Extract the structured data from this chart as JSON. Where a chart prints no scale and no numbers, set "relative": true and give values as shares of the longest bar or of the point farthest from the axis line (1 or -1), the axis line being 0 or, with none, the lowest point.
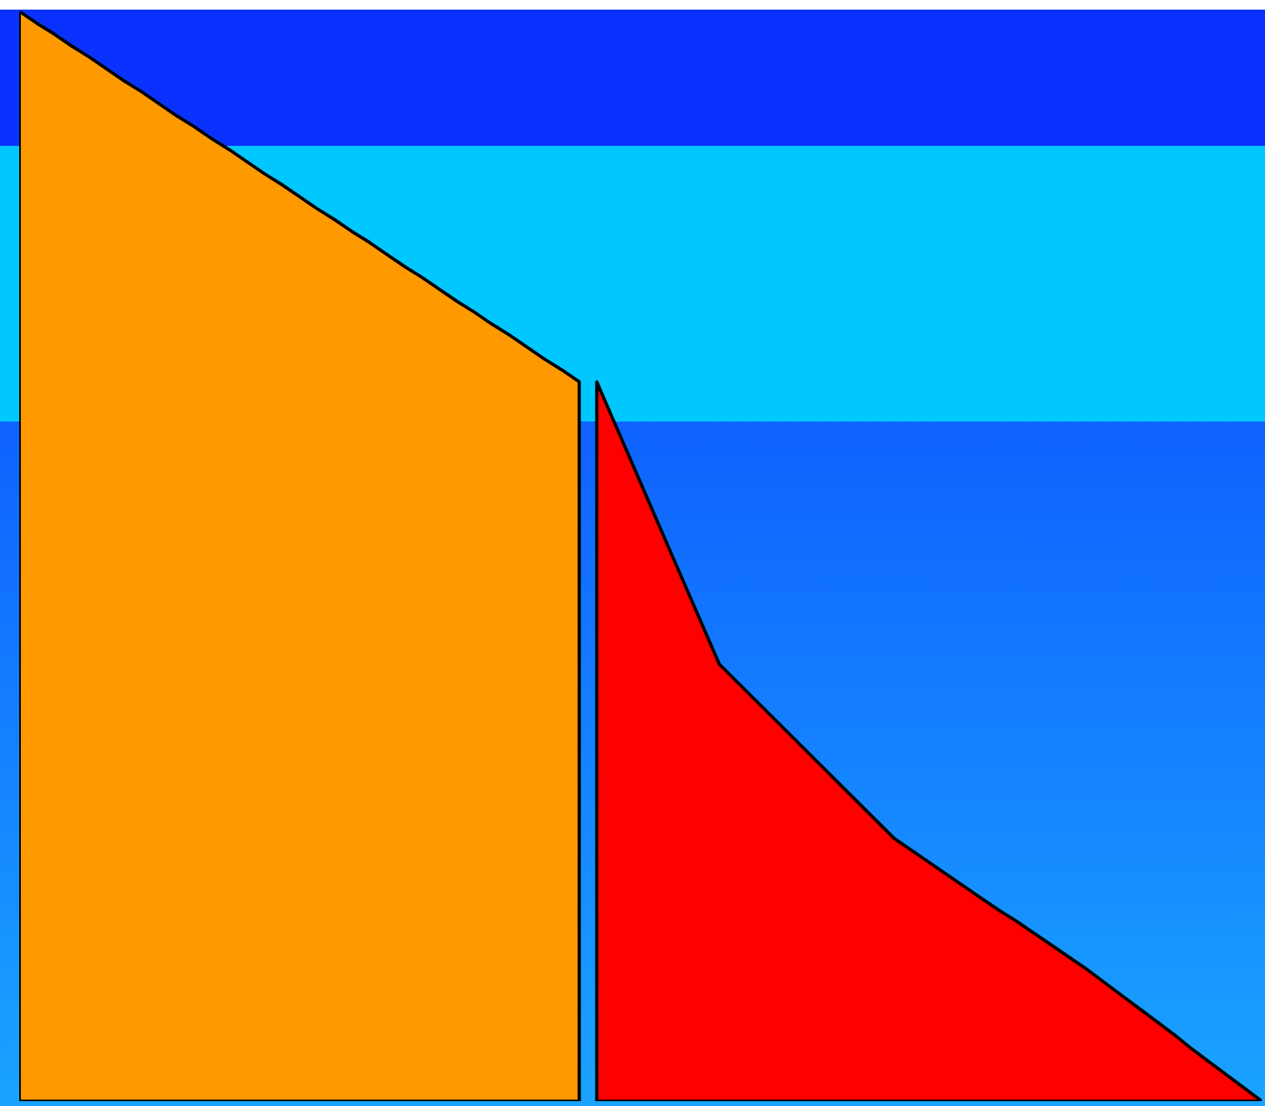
{
  "chart_data": {
    "type": "area",
    "relative": true,
    "categories": [
      null,
      null,
      null,
      null,
      null,
      null,
      null,
      null,
      null,
      null,
      null,
      null,
      null,
      null,
      null,
      null,
      null,
      null,
      null,
      null,
      null,
      null,
      null,
      null,
      null,
      null,
      null,
      null,
      null,
      null,
      null,
      null,
      null,
      null,
      null,
      null,
      null,
      null,
      null,
      null,
      null,
      null,
      null,
      null,
      null,
      null,
      null,
      null,
      null,
      null,
      null,
      null,
      null,
      null,
      null,
      null,
      null,
      null,
      null,
      null,
      null,
      null,
      null,
      null,
      null,
      null,
      null,
      null,
      null,
      null,
      null,
      null
    ],
    "series": [
      {
        "color": "#ff9900",
        "values": [
          1,
          0.989,
          0.979,
          0.968,
          0.958,
          0.947,
          0.936,
          0.926,
          0.915,
          0.904,
          0.894,
          0.883,
          0.873,
          0.862,
          0.851,
          0.841,
          0.83,
          0.819,
          0.809,
          0.798,
          0.788,
          0.777,
          0.766,
          0.756,
          0.745,
          0.734,
          0.724,
          0.713,
          0.703,
          0.692,
          0.681,
          0.671,
          0.66,
          null,
          null,
          null,
          null,
          null,
          null,
          null,
          null,
          null,
          null,
          null,
          null,
          null,
          null,
          null,
          null,
          null,
          null,
          null,
          null,
          null,
          null,
          null,
          null,
          null,
          null,
          null,
          null,
          null,
          null,
          null,
          null,
          null,
          null,
          null,
          null,
          null,
          null,
          null
        ]
      },
      {
        "color": "#ff0000",
        "values": [
          null,
          null,
          null,
          null,
          null,
          null,
          null,
          null,
          null,
          null,
          null,
          null,
          null,
          null,
          null,
          null,
          null,
          null,
          null,
          null,
          null,
          null,
          null,
          null,
          null,
          null,
          null,
          null,
          null,
          null,
          null,
          null,
          null,
          0.66,
          0.623,
          0.586,
          0.549,
          0.512,
          0.475,
          0.438,
          0.401,
          0.385,
          0.369,
          0.353,
          0.337,
          0.321,
          0.305,
          0.289,
          0.273,
          0.257,
          0.241,
          0.23,
          0.219,
          0.208,
          0.197,
          0.186,
          0.175,
          0.165,
          0.154,
          0.143,
          0.132,
          0.121,
          0.109,
          0.097,
          0.085,
          0.073,
          0.061,
          0.048,
          0.036,
          0.024,
          0.012,
          0
        ]
      }
    ]
  }
}
